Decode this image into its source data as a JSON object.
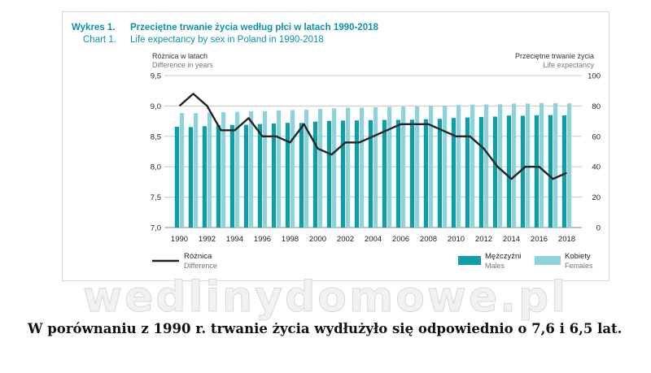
{
  "chart_data": {
    "type": "bar+line",
    "title_label_pl": "Wykres 1.",
    "title_label_en": "Chart 1.",
    "title_pl": "Przeciętne trwanie życia według płci w latach 1990-2018",
    "title_en": "Life expectancy by sex in Poland in 1990-2018",
    "y_left_label_pl": "Różnica w latach",
    "y_left_label_en": "Difference in years",
    "y_right_label_pl": "Przeciętne trwanie życia",
    "y_right_label_en": "Life expectancy",
    "y_left_range": [
      7.0,
      9.5
    ],
    "y_left_ticks": [
      "9,5",
      "9,0",
      "8,5",
      "8,0",
      "7,5",
      "7,0"
    ],
    "y_right_range": [
      0,
      100
    ],
    "y_right_ticks": [
      "100",
      "80",
      "60",
      "40",
      "20",
      "0"
    ],
    "x": [
      1990,
      1991,
      1992,
      1993,
      1994,
      1995,
      1996,
      1997,
      1998,
      1999,
      2000,
      2001,
      2002,
      2003,
      2004,
      2005,
      2006,
      2007,
      2008,
      2009,
      2010,
      2011,
      2012,
      2013,
      2014,
      2015,
      2016,
      2017,
      2018
    ],
    "x_tick_labels": [
      "1990",
      "1992",
      "1994",
      "1996",
      "1998",
      "2000",
      "2002",
      "2004",
      "2006",
      "2008",
      "2010",
      "2012",
      "2014",
      "2016",
      "2018"
    ],
    "grid": true,
    "series": [
      {
        "name_pl": "Różnica",
        "name_en": "Difference",
        "axis": "left",
        "style": "line",
        "color": "#222222",
        "values": [
          9.0,
          9.2,
          9.0,
          8.6,
          8.6,
          8.8,
          8.5,
          8.5,
          8.4,
          8.7,
          8.3,
          8.2,
          8.4,
          8.4,
          8.5,
          8.6,
          8.7,
          8.7,
          8.7,
          8.6,
          8.5,
          8.5,
          8.3,
          8.0,
          7.8,
          8.0,
          8.0,
          7.8,
          7.9
        ]
      },
      {
        "name_pl": "Mężczyźni",
        "name_en": "Males",
        "axis": "right",
        "style": "bar",
        "color": "#0d9ea7",
        "values": [
          66.3,
          66.1,
          66.7,
          67.4,
          67.5,
          67.6,
          68.1,
          68.5,
          68.9,
          68.8,
          69.7,
          70.2,
          70.4,
          70.5,
          70.7,
          70.8,
          70.9,
          71.0,
          71.3,
          71.5,
          72.1,
          72.4,
          72.7,
          73.0,
          73.7,
          73.6,
          73.9,
          74.0,
          73.8
        ]
      },
      {
        "name_pl": "Kobiety",
        "name_en": "Females",
        "axis": "right",
        "style": "bar",
        "color": "#8dd3dc",
        "values": [
          75.3,
          75.3,
          75.7,
          76.0,
          76.1,
          76.4,
          76.6,
          77.0,
          77.3,
          77.5,
          78.0,
          78.4,
          78.8,
          78.9,
          79.2,
          79.4,
          79.6,
          79.7,
          80.0,
          80.1,
          80.6,
          80.9,
          81.0,
          81.1,
          81.6,
          81.6,
          81.9,
          81.8,
          81.7
        ]
      }
    ],
    "legend_placement": "bottom"
  },
  "watermark_text": "wedlinydomowe.pl",
  "caption": "W porównaniu z 1990 r. trwanie życia wydłużyło się odpowiednio o 7,6 i 6,5 lat."
}
